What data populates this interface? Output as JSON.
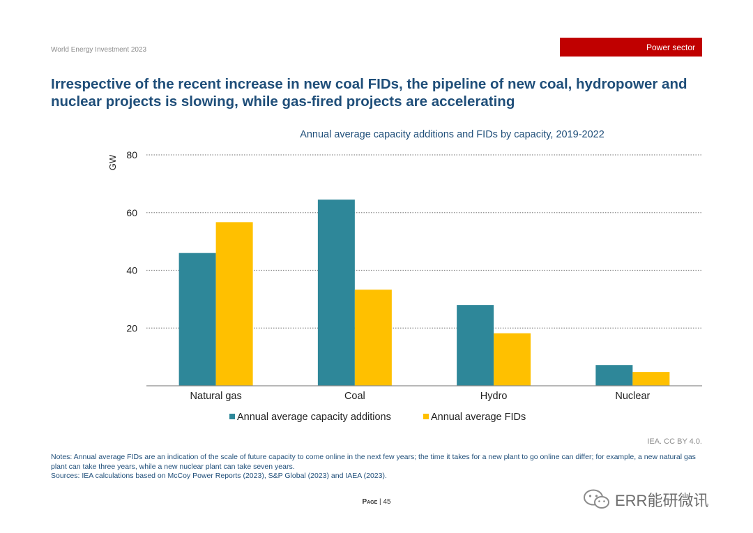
{
  "header": {
    "report_title": "World Energy Investment 2023",
    "section_tag": "Power sector"
  },
  "slide_title": "Irrespective of the recent increase in new coal FIDs, the pipeline of new coal, hydropower and nuclear projects is slowing, while gas-fired projects are accelerating",
  "chart_data": {
    "type": "bar",
    "title": "Annual average capacity additions and FIDs by capacity, 2019-2022",
    "ylabel": "GW",
    "xlabel": "",
    "categories": [
      "Natural gas",
      "Coal",
      "Hydro",
      "Nuclear"
    ],
    "series": [
      {
        "name": "Annual average capacity additions",
        "values": [
          46,
          64.5,
          28,
          7.2
        ],
        "color": "#2e8799"
      },
      {
        "name": "Annual average FIDs",
        "values": [
          56.7,
          33.3,
          18.2,
          4.8
        ],
        "color": "#ffc000"
      }
    ],
    "ylim": [
      0,
      80
    ],
    "yticks": [
      20,
      40,
      60,
      80
    ],
    "grid": true,
    "legend_position": "bottom"
  },
  "attribution": "IEA. CC BY 4.0.",
  "notes": {
    "notes_text": "Notes: Annual average FIDs are an indication of the scale of future capacity to come online in the next few years; the time it takes for a new plant to go online can differ; for example, a new natural gas plant can take three years, while a new nuclear plant can take seven years.",
    "sources_text": "Sources: IEA calculations based on McCoy Power Reports (2023), S&P Global (2023) and IAEA (2023)."
  },
  "footer": {
    "page_label": "Page",
    "separator": " | ",
    "page_number": "45"
  },
  "watermark": {
    "text": "ERR能研微讯",
    "icon": "wechat-icon"
  }
}
